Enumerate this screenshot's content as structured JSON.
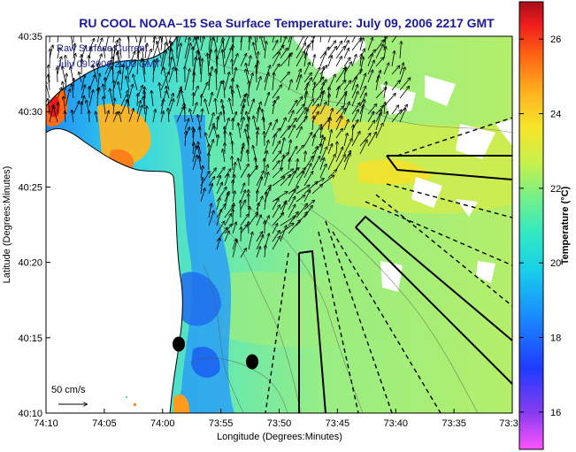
{
  "chart_data": {
    "type": "heatmap",
    "title": "RU COOL  NOAA–15  Sea Surface Temperature:  July 09, 2006 2217 GMT",
    "xlabel": "Longitude (Degrees:Minutes)",
    "ylabel": "Latitude (Degrees:Minutes)",
    "colorbar_label": "Temperature (°C)",
    "x_ticks": [
      "74:10",
      "74:05",
      "74:00",
      "73:55",
      "73:50",
      "73:45",
      "73:40",
      "73:35",
      "73:3"
    ],
    "y_ticks": [
      "40:35",
      "40:30",
      "40:25",
      "40:20",
      "40:15",
      "40:10"
    ],
    "xlim": [
      "74:10",
      "73:30"
    ],
    "ylim": [
      "40:10",
      "40:35"
    ],
    "colorbar_ticks": [
      26,
      24,
      22,
      20,
      18,
      16
    ],
    "colorbar_range": [
      15,
      27
    ],
    "colors": {
      "land": "#ffffff",
      "cloud": "#ffffff",
      "title": "#1a1a9e",
      "coastline": "#000000",
      "vectors": "#000000"
    },
    "annotation_lines": [
      "Raw Surface Current",
      "July 09 2006 2200 GMT"
    ],
    "scale_label": "50 cm/s",
    "vector_field": "Raw surface currents, mostly directed north / north-east; strongest in the Hudson River outflow area.",
    "markers": 2,
    "grid": false
  }
}
